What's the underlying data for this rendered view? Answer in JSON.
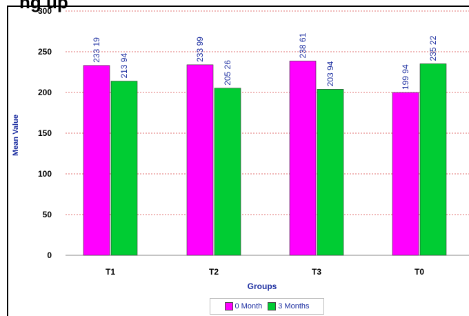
{
  "chart_title_fragment": "ng up",
  "chart_data": {
    "type": "bar",
    "title": "",
    "xlabel": "Groups",
    "ylabel": "Mean Value",
    "categories": [
      "T1",
      "T2",
      "T3",
      "T0"
    ],
    "series": [
      {
        "name": "0 Month",
        "values": [
          233.19,
          233.99,
          238.61,
          199.94
        ],
        "labels": [
          "233 19",
          "233 99",
          "238 61",
          "199 94"
        ],
        "color": "#ff00ff"
      },
      {
        "name": "3 Months",
        "values": [
          213.94,
          205.26,
          203.94,
          235.22
        ],
        "labels": [
          "213 94",
          "205 26",
          "203 94",
          "235 22"
        ],
        "color": "#00cc33"
      }
    ],
    "ylim": [
      0,
      300
    ],
    "yticks": [
      0,
      50,
      100,
      150,
      200,
      250,
      300
    ],
    "grid": true,
    "gridline_color": "#e07070",
    "label_color": "#1c2ea0",
    "legend_position": "bottom"
  }
}
